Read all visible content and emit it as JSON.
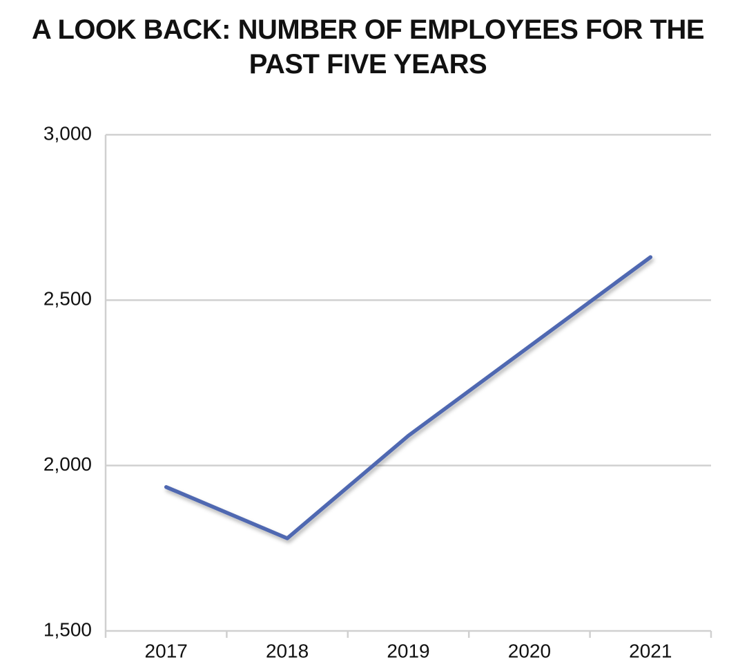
{
  "chart_data": {
    "type": "line",
    "title": "A LOOK BACK: NUMBER OF EMPLOYEES FOR THE PAST FIVE YEARS",
    "categories": [
      "2017",
      "2018",
      "2019",
      "2020",
      "2021"
    ],
    "values": [
      1935,
      1780,
      2090,
      2360,
      2630
    ],
    "color": "#4f67b1",
    "ylim": [
      1500,
      3000
    ],
    "yticks": [
      {
        "value": 1500,
        "label": "1,500"
      },
      {
        "value": 2000,
        "label": "2,000"
      },
      {
        "value": 2500,
        "label": "2,500"
      },
      {
        "value": 3000,
        "label": "3,000"
      }
    ],
    "grid": true
  }
}
